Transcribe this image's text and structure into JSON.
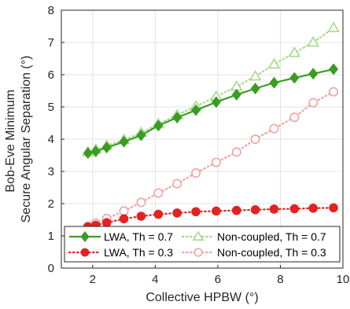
{
  "chart_data": {
    "type": "line",
    "xlabel": "Collective HPBW (°)",
    "ylabel": [
      "Bob-Eve Minimum",
      "Secure Angular Separation (°)"
    ],
    "xlim": [
      1,
      10
    ],
    "ylim": [
      0,
      8
    ],
    "xticks": [
      2,
      4,
      6,
      8,
      10
    ],
    "yticks": [
      0,
      1,
      2,
      3,
      4,
      5,
      6,
      7,
      8
    ],
    "grid": true,
    "legend_placement": "bottom",
    "x": [
      1.85,
      2.1,
      2.45,
      3.0,
      3.55,
      4.1,
      4.7,
      5.3,
      5.95,
      6.6,
      7.2,
      7.8,
      8.45,
      9.05,
      9.7
    ],
    "series": [
      {
        "name": "LWA, Th = 0.7",
        "color": "#3a9d23",
        "marker": "diamond",
        "filled": true,
        "style": "solid",
        "values": [
          3.57,
          3.62,
          3.74,
          3.92,
          4.12,
          4.42,
          4.67,
          4.9,
          5.15,
          5.38,
          5.57,
          5.75,
          5.9,
          6.03,
          6.17
        ]
      },
      {
        "name": "LWA, Th = 0.3",
        "color": "#e32222",
        "marker": "circle",
        "filled": true,
        "style": "dotted",
        "values": [
          1.28,
          1.33,
          1.41,
          1.53,
          1.61,
          1.67,
          1.71,
          1.75,
          1.77,
          1.79,
          1.81,
          1.83,
          1.84,
          1.86,
          1.87
        ]
      },
      {
        "name": "Non-coupled, Th = 0.7",
        "color": "#a8d98a",
        "marker": "triangle",
        "filled": false,
        "style": "dotted",
        "values": [
          3.6,
          3.68,
          3.8,
          3.98,
          4.2,
          4.47,
          4.75,
          5.02,
          5.32,
          5.63,
          5.95,
          6.32,
          6.68,
          7.0,
          7.45
        ]
      },
      {
        "name": "Non-coupled, Th = 0.3",
        "color": "#f2a3a3",
        "marker": "circle",
        "filled": false,
        "style": "dotted",
        "values": [
          1.3,
          1.4,
          1.54,
          1.77,
          2.04,
          2.33,
          2.62,
          2.95,
          3.28,
          3.6,
          4.0,
          4.33,
          4.68,
          5.13,
          5.47
        ]
      }
    ]
  }
}
